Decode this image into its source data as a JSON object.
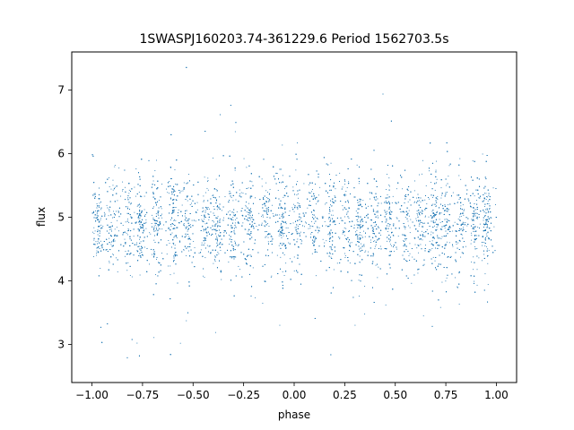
{
  "chart_data": {
    "type": "scatter",
    "title": "1SWASPJ160203.74-361229.6 Period 1562703.5s",
    "xlabel": "phase",
    "ylabel": "flux",
    "xlim": [
      -1.1,
      1.1
    ],
    "ylim": [
      2.4,
      7.6
    ],
    "x_ticks": [
      -1.0,
      -0.75,
      -0.5,
      -0.25,
      0.0,
      0.25,
      0.5,
      0.75,
      1.0
    ],
    "x_tick_labels": [
      "−1.00",
      "−0.75",
      "−0.50",
      "−0.25",
      "0.00",
      "0.25",
      "0.50",
      "0.75",
      "1.00"
    ],
    "y_ticks": [
      3,
      4,
      5,
      6,
      7
    ],
    "y_tick_labels": [
      "3",
      "4",
      "5",
      "6",
      "7"
    ],
    "grid": false,
    "marker_color": "#1f77b4",
    "series": [
      {
        "x_range": [
          -1.0,
          1.0
        ],
        "y_center": 4.9,
        "typical_y_range": [
          3.9,
          6.0
        ],
        "y_extremes": [
          2.65,
          7.45
        ],
        "vertical_streaks_x": [
          -0.97,
          -0.9,
          -0.82,
          -0.76,
          -0.68,
          -0.6,
          -0.53,
          -0.44,
          -0.38,
          -0.3,
          -0.22,
          -0.14,
          -0.06,
          0.02,
          0.1,
          0.18,
          0.26,
          0.32,
          0.4,
          0.47,
          0.55,
          0.62,
          0.69,
          0.75,
          0.82,
          0.89,
          0.95
        ],
        "approx_point_count": 9000
      }
    ]
  }
}
